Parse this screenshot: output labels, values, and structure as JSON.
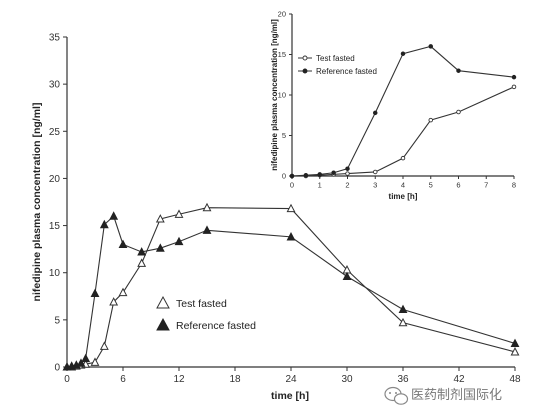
{
  "chart_data": [
    {
      "type": "line",
      "title": "",
      "xlabel": "time [h]",
      "ylabel": "nifedipine plasma concentration [ng/ml]",
      "xlim": [
        0,
        48
      ],
      "ylim": [
        0,
        35
      ],
      "xticks": [
        0,
        6,
        12,
        18,
        24,
        30,
        36,
        42,
        48
      ],
      "yticks": [
        0,
        5,
        10,
        15,
        20,
        25,
        30,
        35
      ],
      "legend_position": "center-left",
      "series": [
        {
          "name": "Test fasted",
          "marker": "open-triangle",
          "x": [
            0,
            0.5,
            1,
            1.5,
            2,
            3,
            4,
            5,
            6,
            8,
            10,
            12,
            15,
            24,
            30,
            36,
            48
          ],
          "y": [
            0,
            0,
            0.1,
            0.2,
            0.3,
            0.5,
            2.2,
            6.9,
            7.9,
            11.0,
            15.7,
            16.2,
            16.9,
            16.8,
            10.3,
            4.7,
            1.6
          ]
        },
        {
          "name": "Reference fasted",
          "marker": "filled-triangle",
          "x": [
            0,
            0.5,
            1,
            1.5,
            2,
            3,
            4,
            5,
            6,
            8,
            10,
            12,
            15,
            24,
            30,
            36,
            48
          ],
          "y": [
            0,
            0.1,
            0.2,
            0.4,
            0.9,
            7.8,
            15.1,
            16.0,
            13.0,
            12.2,
            12.6,
            13.3,
            14.5,
            13.8,
            9.6,
            6.1,
            2.5
          ]
        }
      ]
    },
    {
      "type": "line",
      "title": "",
      "xlabel": "time [h]",
      "ylabel": "nifedipine plasma concentration [ng/ml]",
      "xlim": [
        0,
        8
      ],
      "ylim": [
        0,
        20
      ],
      "xticks": [
        0,
        1,
        2,
        3,
        4,
        5,
        6,
        7,
        8
      ],
      "yticks": [
        0,
        5,
        10,
        15,
        20
      ],
      "legend_position": "top-left",
      "series": [
        {
          "name": "Test fasted",
          "marker": "open-circle",
          "x": [
            0,
            0.5,
            1,
            1.5,
            2,
            3,
            4,
            5,
            6,
            8
          ],
          "y": [
            0,
            0,
            0.1,
            0.2,
            0.3,
            0.5,
            2.2,
            6.9,
            7.9,
            11.0
          ]
        },
        {
          "name": "Reference fasted",
          "marker": "filled-dot",
          "x": [
            0,
            0.5,
            1,
            1.5,
            2,
            3,
            4,
            5,
            6,
            8
          ],
          "y": [
            0,
            0.1,
            0.2,
            0.4,
            0.9,
            7.8,
            15.1,
            16.0,
            13.0,
            12.2
          ]
        }
      ]
    }
  ],
  "watermark": {
    "text": "医药制剂国际化",
    "icon": "wechat-icon"
  }
}
